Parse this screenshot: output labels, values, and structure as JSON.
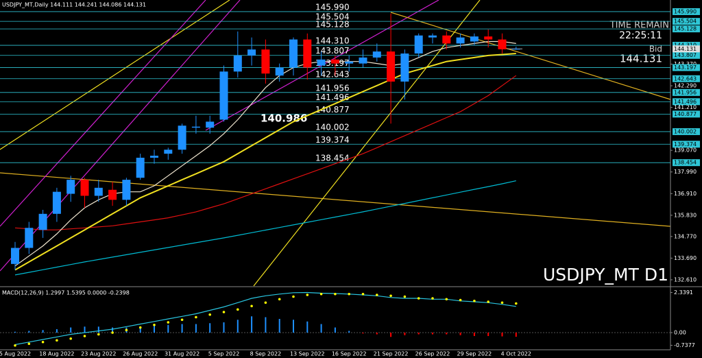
{
  "chart_data": {
    "type": "candlestick",
    "title": "USDJPY_MT,Daily 144.111 144.241 144.086 144.131",
    "watermark": "USDJPY_MT D1",
    "categories": [
      "5 Aug 2022",
      null,
      null,
      "18 Aug 2022",
      null,
      null,
      "23 Aug 2022",
      null,
      null,
      "26 Aug 2022",
      null,
      null,
      "31 Aug 2022",
      null,
      null,
      "5 Sep 2022",
      null,
      null,
      "8 Sep 2022",
      null,
      null,
      "13 Sep 2022",
      null,
      null,
      "16 Sep 2022",
      null,
      null,
      "21 Sep 2022",
      null,
      null,
      "26 Sep 2022",
      null,
      null,
      "29 Sep 2022",
      null,
      null,
      "4 Oct 2022"
    ],
    "open": [
      133.4,
      134.2,
      135.1,
      135.9,
      136.9,
      137.6,
      136.8,
      137.1,
      136.6,
      137.7,
      138.7,
      138.9,
      139.1,
      140.2,
      140.2,
      140.6,
      143.0,
      143.8,
      144.1,
      142.8,
      143.2,
      144.6,
      143.3,
      143.6,
      143.4,
      143.4,
      143.7,
      144.0,
      142.5,
      143.9,
      144.7,
      144.8,
      144.4,
      144.5,
      144.75,
      144.6,
      144.111
    ],
    "high": [
      134.5,
      135.5,
      136.1,
      137.2,
      137.8,
      137.7,
      137.6,
      137.5,
      137.7,
      138.9,
      139.1,
      139.2,
      140.4,
      140.8,
      140.8,
      143.3,
      145.0,
      144.7,
      144.6,
      143.4,
      144.7,
      144.9,
      144.0,
      143.8,
      143.8,
      144.1,
      144.4,
      145.9,
      144.1,
      144.9,
      144.9,
      145.0,
      144.9,
      144.9,
      145.1,
      144.9,
      144.241
    ],
    "low": [
      133.1,
      133.9,
      134.7,
      135.5,
      136.5,
      136.2,
      136.5,
      136.3,
      136.3,
      137.6,
      138.4,
      138.6,
      138.9,
      139.9,
      139.9,
      140.5,
      142.7,
      143.3,
      142.4,
      142.5,
      142.8,
      142.6,
      142.8,
      142.8,
      143.0,
      143.2,
      143.5,
      140.4,
      141.6,
      143.7,
      144.4,
      144.1,
      144.2,
      144.3,
      144.2,
      143.9,
      144.086
    ],
    "close": [
      134.2,
      135.2,
      135.9,
      137.0,
      137.6,
      136.8,
      137.2,
      136.6,
      137.6,
      138.7,
      138.8,
      139.1,
      140.3,
      140.25,
      140.5,
      143.0,
      143.8,
      144.1,
      142.9,
      143.2,
      144.6,
      143.2,
      143.6,
      143.4,
      143.5,
      143.7,
      144.0,
      142.5,
      143.9,
      144.8,
      144.8,
      144.4,
      144.7,
      144.75,
      144.6,
      144.111,
      144.131
    ],
    "up_color": "#1e90ff",
    "down_color": "#ff0000",
    "ylim": [
      132.3,
      146.57
    ],
    "yticks": [
      {
        "value": 132.61,
        "label": "132.610"
      },
      {
        "value": 133.69,
        "label": "133.690"
      },
      {
        "value": 134.77,
        "label": "134.770"
      },
      {
        "value": 135.83,
        "label": "135.830"
      },
      {
        "value": 136.91,
        "label": "136.910"
      },
      {
        "value": 137.99,
        "label": "137.990"
      },
      {
        "value": 139.07,
        "label": "139.070"
      },
      {
        "value": 141.21,
        "label": "141.210"
      },
      {
        "value": 142.29,
        "label": "142.290"
      },
      {
        "value": 143.37,
        "label": "143.370"
      }
    ],
    "levels": [
      {
        "value": 145.99,
        "label": "145.990"
      },
      {
        "value": 145.504,
        "label": "145.504"
      },
      {
        "value": 145.128,
        "label": "145.128"
      },
      {
        "value": 144.31,
        "label": "144.310"
      },
      {
        "value": 143.807,
        "label": "143.807"
      },
      {
        "value": 143.197,
        "label": "143.197"
      },
      {
        "value": 142.643,
        "label": "142.643"
      },
      {
        "value": 141.956,
        "label": "141.956"
      },
      {
        "value": 141.496,
        "label": "141.496"
      },
      {
        "value": 140.877,
        "label": "140.877"
      },
      {
        "value": 140.002,
        "label": "140.002"
      },
      {
        "value": 139.374,
        "label": "139.374"
      },
      {
        "value": 138.454,
        "label": "138.454"
      }
    ],
    "level_color": "#2fc6d6",
    "annotation": {
      "value": 140.986,
      "label": "140.986"
    },
    "bid": {
      "value": 144.131,
      "label": "144.131"
    },
    "time_remain_label": "TIME REMAIN",
    "time_remain": "22:25:11",
    "bid_label": "Bid",
    "overlays": [
      {
        "color": "#00bcd4",
        "values": [
          132.85,
          132.98,
          133.11,
          133.24,
          133.37,
          133.5,
          133.62,
          133.74,
          133.86,
          133.98,
          134.1,
          134.22,
          134.34,
          134.46,
          134.58,
          134.7,
          134.83,
          134.96,
          135.09,
          135.22,
          135.35,
          135.48,
          135.61,
          135.74,
          135.87,
          136.0,
          136.14,
          136.28,
          136.42,
          136.56,
          136.7,
          136.84,
          136.98,
          137.12,
          137.26,
          137.4,
          137.55
        ]
      },
      {
        "color": "#e01010",
        "values": [
          135.2,
          135.15,
          135.1,
          135.1,
          135.15,
          135.2,
          135.25,
          135.3,
          135.4,
          135.5,
          135.6,
          135.7,
          135.85,
          136.0,
          136.2,
          136.4,
          136.65,
          136.9,
          137.15,
          137.4,
          137.65,
          137.9,
          138.15,
          138.4,
          138.65,
          138.9,
          139.2,
          139.5,
          139.8,
          140.1,
          140.4,
          140.7,
          141.0,
          141.4,
          141.8,
          142.3,
          142.8
        ]
      },
      {
        "color": "#f0e020",
        "values": [
          133.1,
          133.5,
          133.9,
          134.3,
          134.7,
          135.1,
          135.5,
          135.9,
          136.3,
          136.7,
          137.0,
          137.3,
          137.6,
          137.9,
          138.2,
          138.5,
          138.9,
          139.3,
          139.7,
          140.1,
          140.5,
          140.8,
          141.1,
          141.4,
          141.7,
          142.0,
          142.3,
          142.6,
          142.9,
          143.1,
          143.3,
          143.5,
          143.6,
          143.7,
          143.8,
          143.85,
          143.9
        ]
      },
      {
        "color": "#f0e6d0",
        "values": [
          133.3,
          133.8,
          134.3,
          134.9,
          135.6,
          136.2,
          136.6,
          136.9,
          137.0,
          137.0,
          137.3,
          137.8,
          138.3,
          138.8,
          139.3,
          139.9,
          140.6,
          141.4,
          142.2,
          142.8,
          143.2,
          143.4,
          143.5,
          143.5,
          143.5,
          143.5,
          143.4,
          143.3,
          143.4,
          143.7,
          144.0,
          144.2,
          144.3,
          144.4,
          144.5,
          144.5,
          144.4
        ]
      }
    ],
    "macd": {
      "title": "MACD(12,26,9) 1.2997 1.5395 0.0000 -0.2398",
      "ylim": [
        -1,
        2.6
      ],
      "yticks": [
        2.3391,
        {
          "value": 0,
          "label": "0.00"
        },
        -0.7377
      ],
      "histogram": [
        0.05,
        0.1,
        0.15,
        0.2,
        0.3,
        0.35,
        0.35,
        0.3,
        0.3,
        0.35,
        0.4,
        0.45,
        0.5,
        0.5,
        0.55,
        0.6,
        0.75,
        0.95,
        0.9,
        0.8,
        0.75,
        0.65,
        0.5,
        0.3,
        0.1,
        -0.05,
        -0.1,
        -0.25,
        -0.15,
        -0.1,
        -0.1,
        -0.1,
        -0.15,
        -0.2,
        -0.2,
        -0.22,
        -0.24
      ],
      "line": [
        -0.7,
        -0.55,
        -0.4,
        -0.25,
        -0.1,
        0.0,
        0.1,
        0.2,
        0.35,
        0.5,
        0.65,
        0.8,
        0.95,
        1.1,
        1.3,
        1.5,
        1.75,
        2.0,
        2.15,
        2.25,
        2.33,
        2.34,
        2.3,
        2.28,
        2.25,
        2.2,
        2.15,
        2.05,
        2.0,
        2.0,
        1.95,
        1.95,
        1.85,
        1.8,
        1.75,
        1.65,
        1.53
      ],
      "signal": [
        -0.75,
        -0.65,
        -0.55,
        -0.45,
        -0.35,
        -0.2,
        -0.1,
        0.0,
        0.15,
        0.3,
        0.45,
        0.6,
        0.75,
        0.9,
        1.05,
        1.2,
        1.35,
        1.55,
        1.75,
        1.95,
        2.1,
        2.2,
        2.25,
        2.25,
        2.25,
        2.25,
        2.2,
        2.15,
        2.1,
        2.0,
        2.0,
        1.95,
        1.9,
        1.85,
        1.8,
        1.75,
        1.7
      ],
      "line_color": "#29c5e0",
      "signal_color": "#ffff00",
      "histogram_color": "#1e90ff",
      "negative_color": "#ff0000"
    }
  }
}
